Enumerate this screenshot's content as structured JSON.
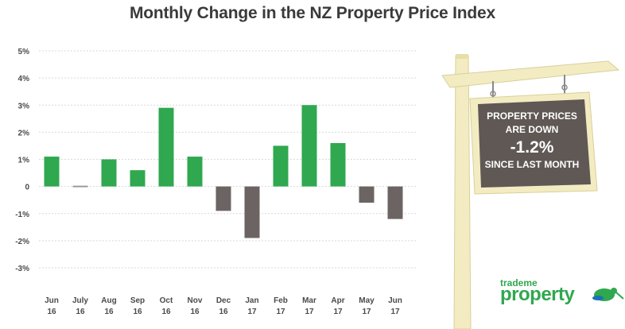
{
  "title": "Monthly Change in the NZ Property Price Index",
  "chart_data": {
    "type": "bar",
    "categories": [
      [
        "Jun",
        "16"
      ],
      [
        "July",
        "16"
      ],
      [
        "Aug",
        "16"
      ],
      [
        "Sep",
        "16"
      ],
      [
        "Oct",
        "16"
      ],
      [
        "Nov",
        "16"
      ],
      [
        "Dec",
        "16"
      ],
      [
        "Jan",
        "17"
      ],
      [
        "Feb",
        "17"
      ],
      [
        "Mar",
        "17"
      ],
      [
        "Apr",
        "17"
      ],
      [
        "May",
        "17"
      ],
      [
        "Jun",
        "17"
      ]
    ],
    "values": [
      1.1,
      0.0,
      1.0,
      0.6,
      2.9,
      1.1,
      -0.9,
      -1.9,
      1.5,
      3.0,
      1.6,
      -0.6,
      -1.2
    ],
    "ylim": [
      -3,
      5
    ],
    "yticks": [
      "5%",
      "4%",
      "3%",
      "2%",
      "1%",
      "0",
      "-1%",
      "-2%",
      "-3%"
    ],
    "grid": true,
    "colors": {
      "positive": "#2fa84f",
      "negative": "#6b6462",
      "zero": "#9a9a9a",
      "grid": "#d9d9d9"
    }
  },
  "sign": {
    "line1": "PROPERTY PRICES",
    "line2": "ARE DOWN",
    "line3": "-1.2%",
    "line4": "SINCE LAST MONTH"
  },
  "logo": {
    "top": "trademe",
    "main": "property",
    "icon": "kiwi-bird-icon"
  }
}
